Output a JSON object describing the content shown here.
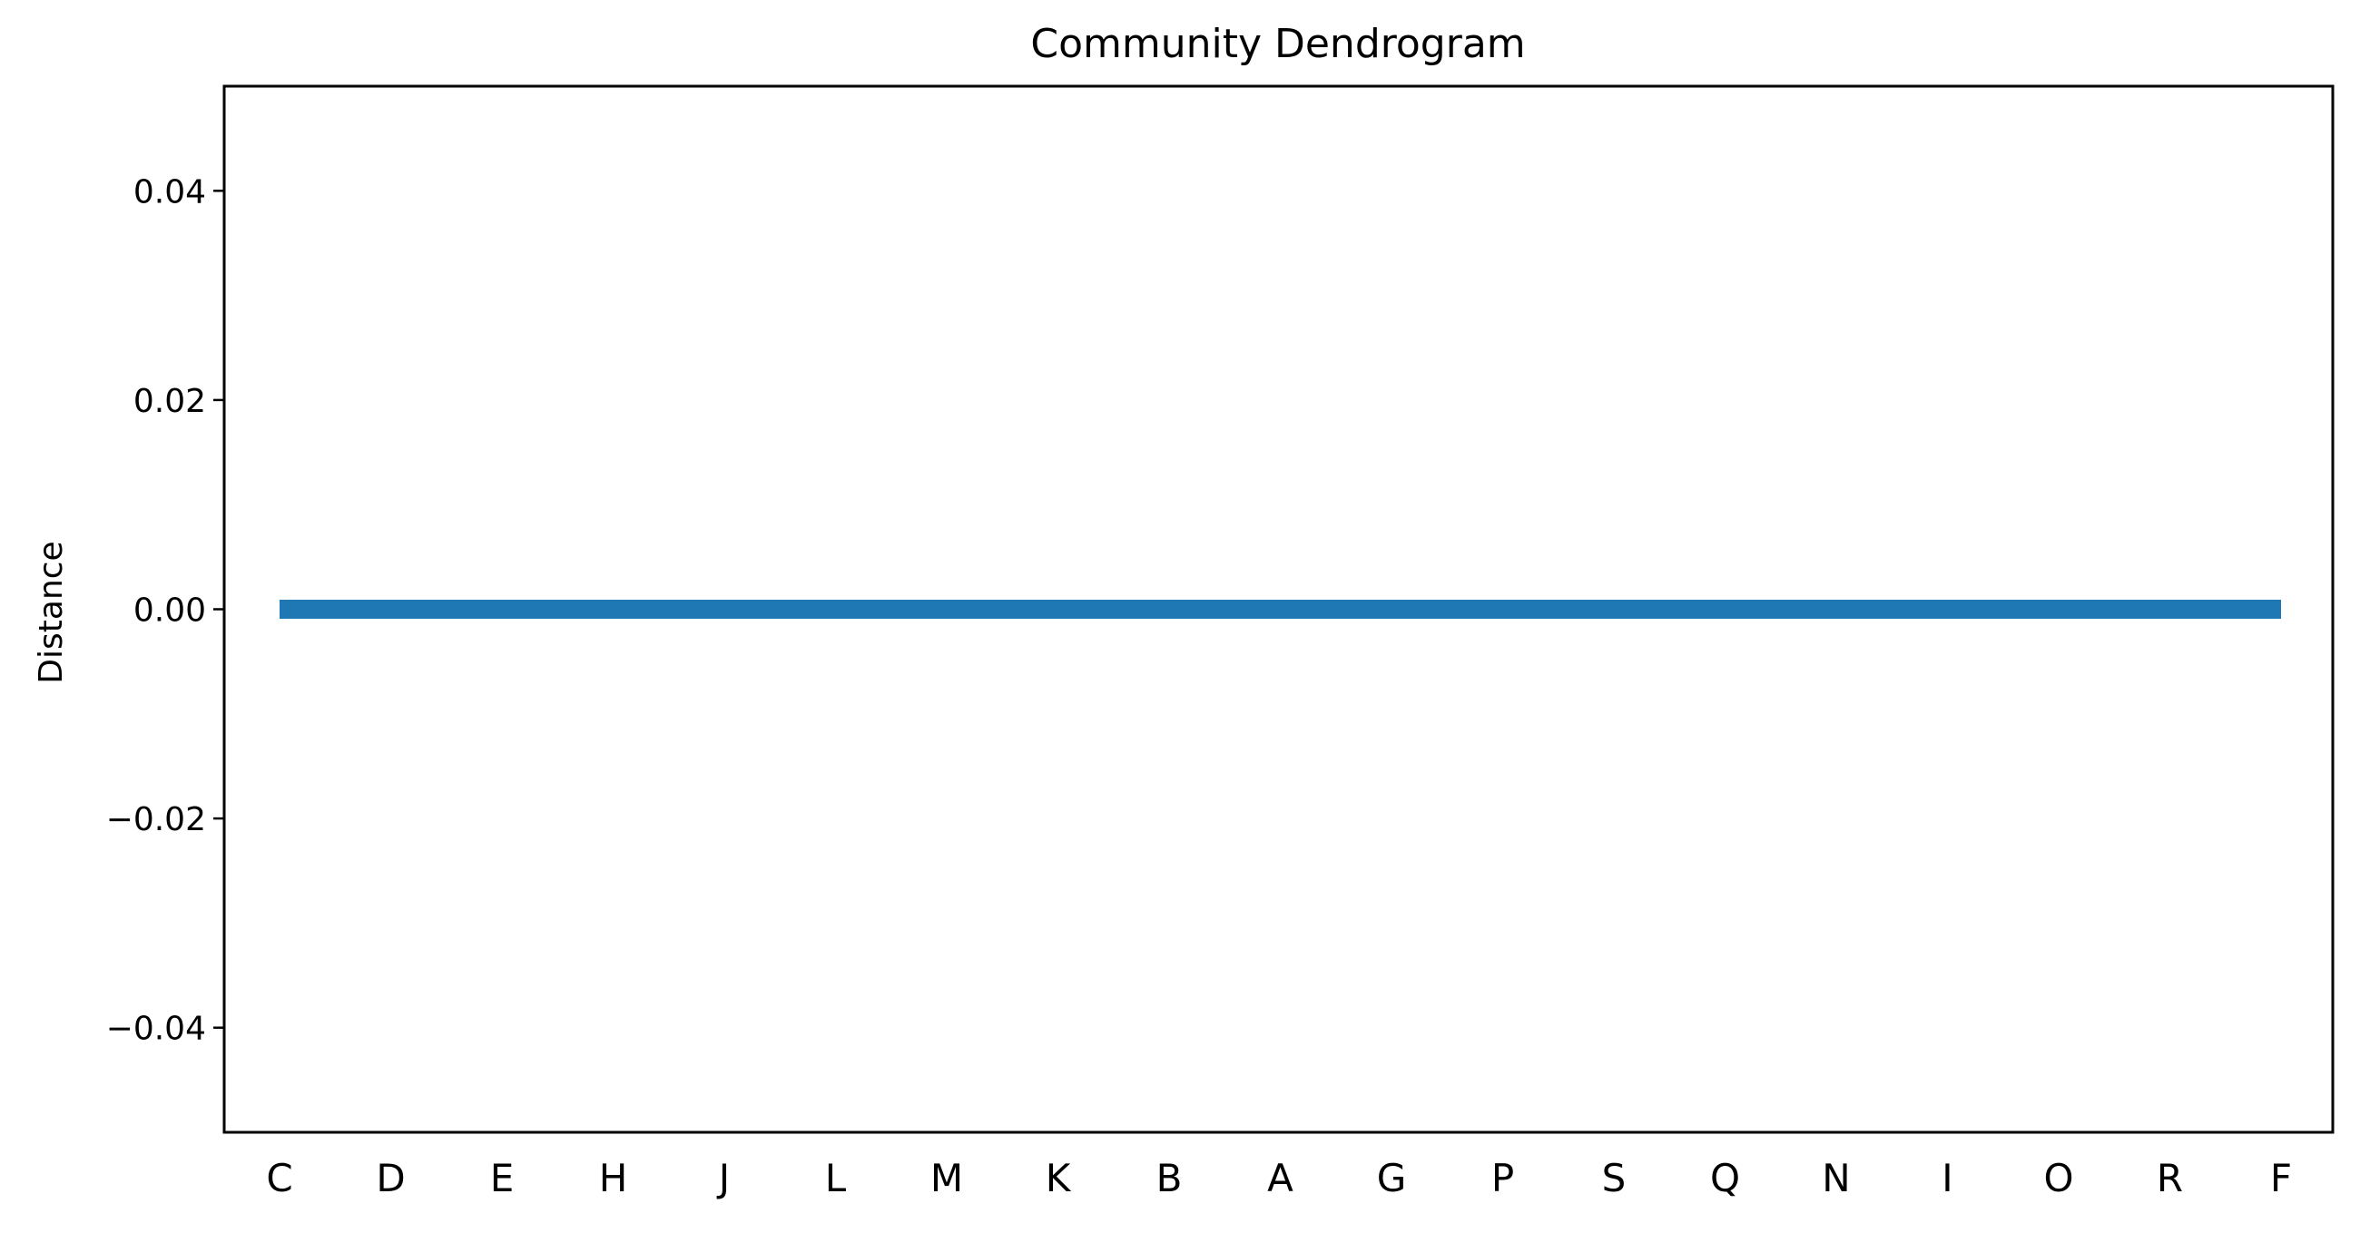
{
  "chart_data": {
    "type": "dendrogram",
    "title": "Community Dendrogram",
    "xlabel": "",
    "ylabel": "Distance",
    "leaves": [
      "C",
      "D",
      "E",
      "H",
      "J",
      "L",
      "M",
      "K",
      "B",
      "A",
      "G",
      "P",
      "S",
      "Q",
      "N",
      "I",
      "O",
      "R",
      "F"
    ],
    "merge_height": 0.0,
    "ylim": [
      -0.05,
      0.05
    ],
    "yticks": [
      -0.04,
      -0.02,
      0.0,
      0.02,
      0.04
    ],
    "ytick_labels": [
      "−0.04",
      "−0.02",
      "0.00",
      "0.02",
      "0.04"
    ],
    "line_color": "#1f77b4",
    "grid": false,
    "legend": "none"
  }
}
